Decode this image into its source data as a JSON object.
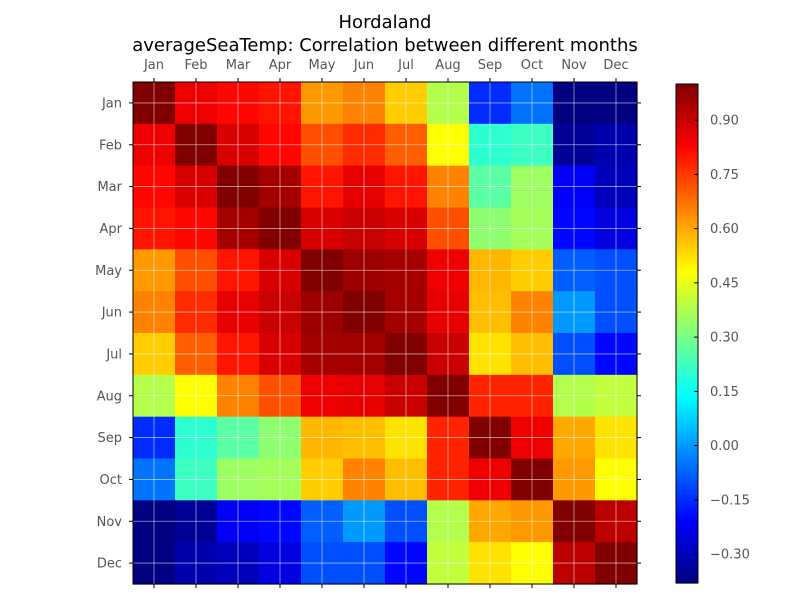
{
  "chart_data": {
    "type": "heatmap",
    "title": "Hordaland",
    "subtitle": "averageSeaTemp: Correlation between different months",
    "x_categories": [
      "Jan",
      "Feb",
      "Mar",
      "Apr",
      "May",
      "Jun",
      "Jul",
      "Aug",
      "Sep",
      "Oct",
      "Nov",
      "Dec"
    ],
    "y_categories": [
      "Jan",
      "Feb",
      "Mar",
      "Apr",
      "May",
      "Jun",
      "Jul",
      "Aug",
      "Sep",
      "Oct",
      "Nov",
      "Dec"
    ],
    "values": [
      [
        1.0,
        0.85,
        0.82,
        0.8,
        0.62,
        0.65,
        0.55,
        0.38,
        -0.15,
        -0.05,
        -0.38,
        -0.38
      ],
      [
        0.85,
        1.0,
        0.88,
        0.82,
        0.72,
        0.77,
        0.7,
        0.48,
        0.2,
        0.22,
        -0.35,
        -0.32
      ],
      [
        0.82,
        0.88,
        1.0,
        0.95,
        0.8,
        0.86,
        0.8,
        0.65,
        0.26,
        0.35,
        -0.22,
        -0.3
      ],
      [
        0.8,
        0.82,
        0.95,
        1.0,
        0.88,
        0.9,
        0.88,
        0.72,
        0.33,
        0.36,
        -0.2,
        -0.25
      ],
      [
        0.62,
        0.72,
        0.8,
        0.88,
        1.0,
        0.96,
        0.95,
        0.85,
        0.58,
        0.55,
        -0.08,
        -0.1
      ],
      [
        0.65,
        0.77,
        0.86,
        0.9,
        0.96,
        1.0,
        0.95,
        0.86,
        0.57,
        0.65,
        0.0,
        -0.1
      ],
      [
        0.55,
        0.7,
        0.8,
        0.88,
        0.95,
        0.95,
        1.0,
        0.9,
        0.52,
        0.57,
        -0.1,
        -0.2
      ],
      [
        0.38,
        0.48,
        0.65,
        0.72,
        0.85,
        0.86,
        0.9,
        1.0,
        0.78,
        0.78,
        0.38,
        0.4
      ],
      [
        -0.15,
        0.2,
        0.26,
        0.33,
        0.58,
        0.57,
        0.52,
        0.78,
        1.0,
        0.85,
        0.6,
        0.52
      ],
      [
        -0.05,
        0.22,
        0.35,
        0.36,
        0.55,
        0.65,
        0.57,
        0.78,
        0.85,
        1.0,
        0.62,
        0.48
      ],
      [
        -0.38,
        -0.35,
        -0.22,
        -0.2,
        -0.08,
        0.0,
        -0.1,
        0.38,
        0.6,
        0.62,
        1.0,
        0.92
      ],
      [
        -0.38,
        -0.32,
        -0.3,
        -0.25,
        -0.1,
        -0.1,
        -0.2,
        0.4,
        0.52,
        0.48,
        0.92,
        1.0
      ]
    ],
    "vmin": -0.38,
    "vmax": 1.0,
    "colormap": "jet",
    "colorbar_ticks": [
      "0.90",
      "0.75",
      "0.60",
      "0.45",
      "0.30",
      "0.15",
      "0.00",
      "−0.15",
      "−0.30"
    ],
    "colorbar_tick_values": [
      0.9,
      0.75,
      0.6,
      0.45,
      0.3,
      0.15,
      0.0,
      -0.15,
      -0.3
    ],
    "x_axis_position": "top",
    "grid": true
  }
}
